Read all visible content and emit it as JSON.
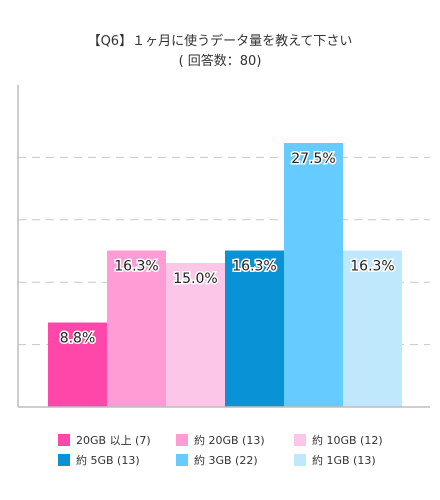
{
  "chart_data": {
    "type": "bar",
    "title": "【Q6】１ヶ月に使うデータ量を教えて下さい",
    "subtitle": "( 回答数：80)",
    "ylim": [
      0,
      32.5
    ],
    "grid": true,
    "gridlines": [
      6.5,
      13,
      19.5,
      26
    ],
    "legend_position": "bottom",
    "categories": [
      "20GB 以上 (7)",
      "約 20GB (13)",
      "約 10GB (12)",
      "約 5GB (13)",
      "約 3GB (22)",
      "約 1GB (13)"
    ],
    "values": [
      8.8,
      16.3,
      15.0,
      16.3,
      27.5,
      16.3
    ],
    "data_labels": [
      "8.8%",
      "16.3%",
      "15.0%",
      "16.3%",
      "27.5%",
      "16.3%"
    ],
    "colors": [
      "#ff47a9",
      "#ff9cd5",
      "#fcc6e8",
      "#0a92d6",
      "#66ccff",
      "#bfe8fd"
    ]
  }
}
